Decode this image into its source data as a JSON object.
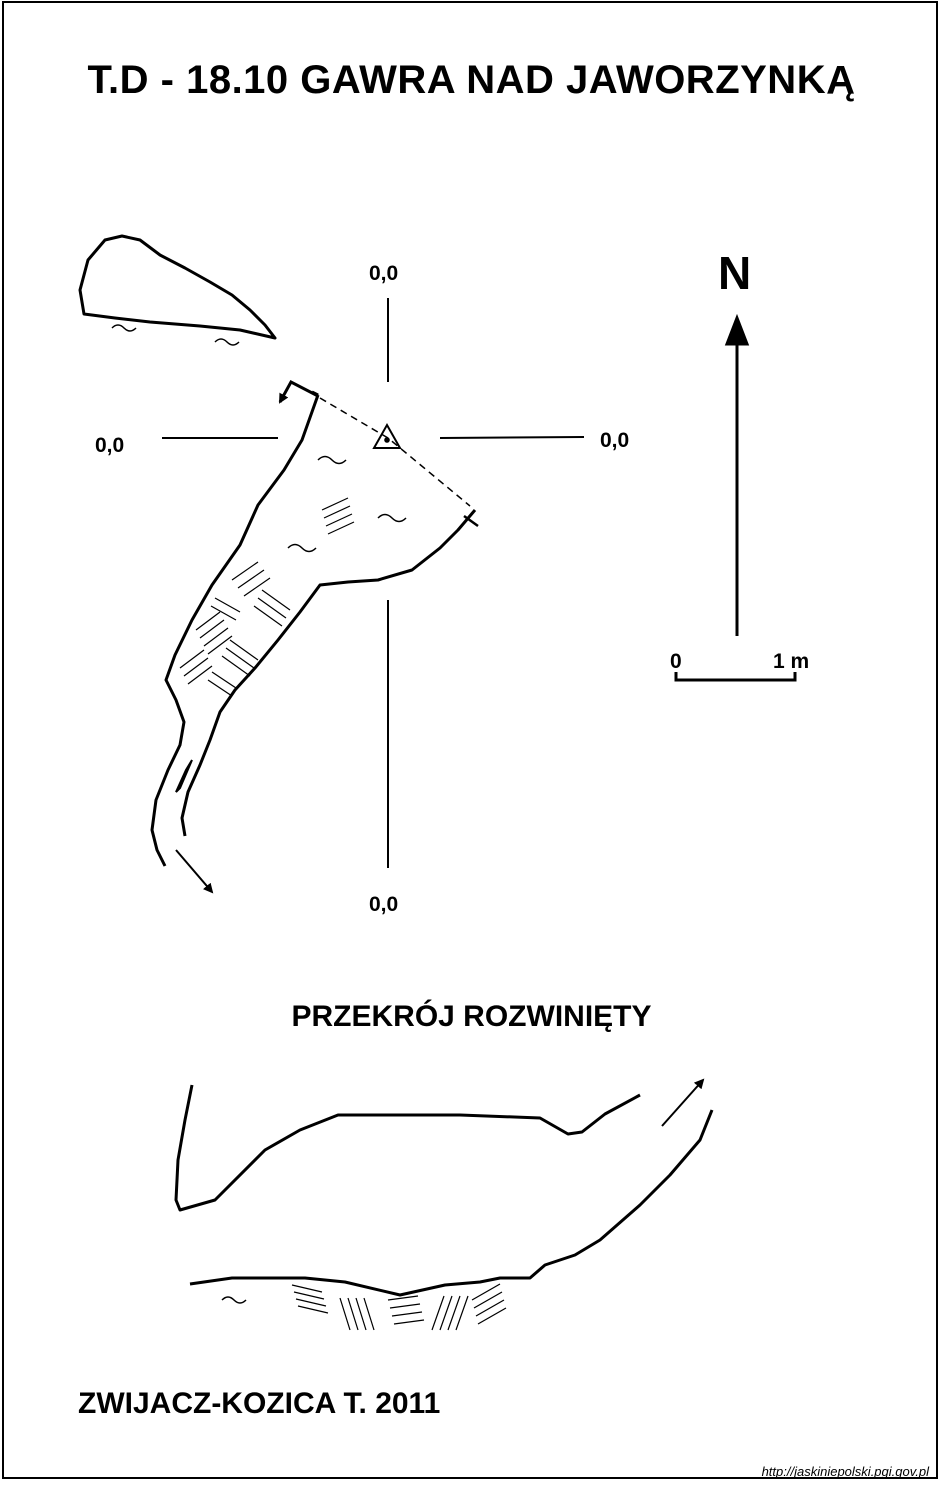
{
  "title": "T.D - 18.10  GAWRA NAD JAWORZYNKĄ",
  "plan": {
    "axis_labels": {
      "top": "0,0",
      "left": "0,0",
      "right": "0,0",
      "bottom": "0,0"
    }
  },
  "north_arrow": {
    "label": "N"
  },
  "scale_bar": {
    "start_label": "0",
    "end_label": "1 m"
  },
  "section": {
    "title": "PRZEKRÓJ ROZWINIĘTY"
  },
  "author": "ZWIJACZ-KOZICA T. 2011",
  "source": "http://jaskiniepolski.pgi.gov.pl"
}
